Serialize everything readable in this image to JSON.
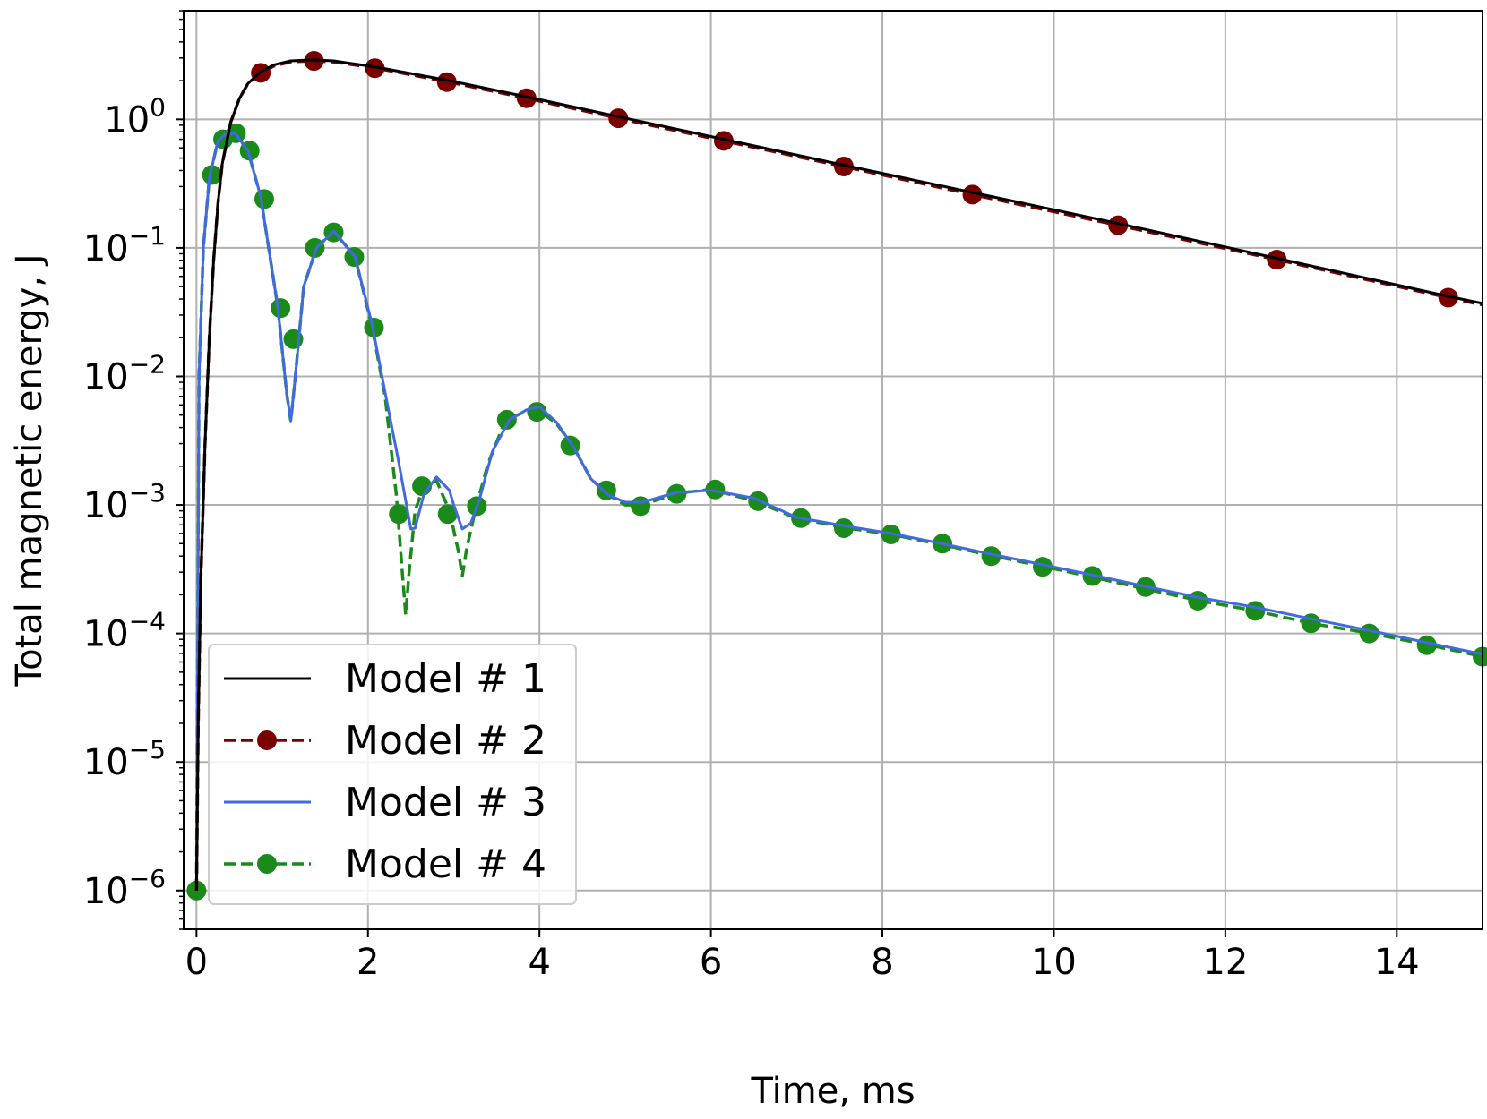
{
  "chart_data": {
    "type": "line",
    "xlabel": "Time, ms",
    "ylabel": "Total magnetic energy, J",
    "yscale": "log",
    "xlim": [
      -0.15,
      15
    ],
    "ylim": [
      5e-07,
      7
    ],
    "grid": true,
    "legend_position": "lower-left",
    "x_ticks": [
      0,
      2,
      4,
      6,
      8,
      10,
      12,
      14
    ],
    "x_tick_labels": [
      "0",
      "2",
      "4",
      "6",
      "8",
      "10",
      "12",
      "14"
    ],
    "y_ticks": [
      1e-06,
      1e-05,
      0.0001,
      0.001,
      0.01,
      0.1,
      1
    ],
    "y_tick_labels": [
      {
        "base": "10",
        "exp": "−6"
      },
      {
        "base": "10",
        "exp": "−5"
      },
      {
        "base": "10",
        "exp": "−4"
      },
      {
        "base": "10",
        "exp": "−3"
      },
      {
        "base": "10",
        "exp": "−2"
      },
      {
        "base": "10",
        "exp": "−1"
      },
      {
        "base": "10",
        "exp": "0"
      }
    ],
    "series": [
      {
        "name": "Model # 1",
        "color": "#000000",
        "line_style": "solid",
        "marker": "none",
        "x": [
          0,
          0.02,
          0.05,
          0.1,
          0.15,
          0.2,
          0.25,
          0.3,
          0.4,
          0.5,
          0.6,
          0.75,
          0.9,
          1.1,
          1.35,
          1.6,
          2.1,
          2.95,
          3.85,
          4.92,
          6.15,
          7.55,
          9.05,
          10.75,
          12.6,
          14.6,
          15
        ],
        "y": [
          1e-06,
          2e-05,
          0.00025,
          0.003,
          0.02,
          0.08,
          0.22,
          0.45,
          0.95,
          1.45,
          1.9,
          2.35,
          2.65,
          2.85,
          2.9,
          2.85,
          2.55,
          2.0,
          1.5,
          1.05,
          0.7,
          0.44,
          0.27,
          0.155,
          0.083,
          0.042,
          0.037
        ]
      },
      {
        "name": "Model # 2",
        "color": "#7a0000",
        "line_style": "dashed",
        "marker": "circle",
        "x": [
          0,
          0.02,
          0.05,
          0.1,
          0.15,
          0.2,
          0.25,
          0.3,
          0.4,
          0.5,
          0.6,
          0.75,
          0.9,
          1.1,
          1.35,
          1.6,
          2.1,
          2.95,
          3.85,
          4.92,
          6.15,
          7.55,
          9.05,
          10.75,
          12.6,
          14.6,
          15
        ],
        "y": [
          1e-06,
          2e-05,
          0.00025,
          0.003,
          0.02,
          0.08,
          0.22,
          0.45,
          0.95,
          1.45,
          1.9,
          2.3,
          2.6,
          2.8,
          2.85,
          2.8,
          2.5,
          1.95,
          1.46,
          1.02,
          0.68,
          0.43,
          0.26,
          0.15,
          0.081,
          0.041,
          0.036
        ],
        "marker_x": [
          0.75,
          1.37,
          2.08,
          2.92,
          3.85,
          4.92,
          6.15,
          7.55,
          9.05,
          10.75,
          12.6,
          14.6
        ],
        "marker_y": [
          2.3,
          2.85,
          2.5,
          1.95,
          1.46,
          1.02,
          0.68,
          0.43,
          0.26,
          0.15,
          0.081,
          0.041
        ]
      },
      {
        "name": "Model # 3",
        "color": "#4169e1",
        "line_style": "solid",
        "marker": "none",
        "x": [
          0,
          0.03,
          0.08,
          0.15,
          0.25,
          0.33,
          0.45,
          0.6,
          0.75,
          0.95,
          1.05,
          1.1,
          1.15,
          1.25,
          1.4,
          1.6,
          1.85,
          2.05,
          2.2,
          2.35,
          2.45,
          2.5,
          2.55,
          2.65,
          2.8,
          2.95,
          3.0,
          3.1,
          3.2,
          3.3,
          3.45,
          3.65,
          3.85,
          4.0,
          4.2,
          4.4,
          4.6,
          4.8,
          5.0,
          5.2,
          5.6,
          6.0,
          6.5,
          7.0,
          7.6,
          8.1,
          8.7,
          9.3,
          9.9,
          10.5,
          11.1,
          11.7,
          12.35,
          13.0,
          13.7,
          14.35,
          15.0
        ],
        "y": [
          1e-06,
          0.01,
          0.1,
          0.35,
          0.68,
          0.76,
          0.78,
          0.57,
          0.25,
          0.034,
          0.0075,
          0.0045,
          0.0095,
          0.05,
          0.1,
          0.135,
          0.085,
          0.025,
          0.0075,
          0.0023,
          0.001,
          0.00065,
          0.00066,
          0.0012,
          0.00165,
          0.0013,
          0.001,
          0.00065,
          0.00072,
          0.0011,
          0.0026,
          0.0046,
          0.0055,
          0.0058,
          0.0044,
          0.0028,
          0.0016,
          0.0012,
          0.00105,
          0.00105,
          0.00125,
          0.0013,
          0.00113,
          0.0008,
          0.00068,
          0.0006,
          0.0005,
          0.00041,
          0.00034,
          0.00028,
          0.00023,
          0.00019,
          0.00016,
          0.00013,
          0.000105,
          8.5e-05,
          6.9e-05
        ]
      },
      {
        "name": "Model # 4",
        "color": "#1a8a1a",
        "line_style": "dashed",
        "marker": "circle",
        "x": [
          0,
          0.03,
          0.08,
          0.15,
          0.25,
          0.33,
          0.45,
          0.6,
          0.75,
          0.95,
          1.05,
          1.1,
          1.15,
          1.25,
          1.4,
          1.6,
          1.85,
          2.05,
          2.2,
          2.33,
          2.4,
          2.44,
          2.48,
          2.55,
          2.65,
          2.8,
          2.95,
          3.05,
          3.1,
          3.15,
          3.25,
          3.4,
          3.6,
          3.85,
          3.98,
          4.2,
          4.4,
          4.6,
          4.8,
          5.0,
          5.2,
          5.6,
          6.0,
          6.5,
          7.0,
          7.6,
          8.1,
          8.7,
          9.3,
          9.9,
          10.5,
          11.1,
          11.7,
          12.35,
          13.0,
          13.7,
          14.35,
          15.0
        ],
        "y": [
          1e-06,
          0.01,
          0.1,
          0.35,
          0.68,
          0.76,
          0.78,
          0.57,
          0.25,
          0.034,
          0.0075,
          0.0045,
          0.0095,
          0.05,
          0.1,
          0.135,
          0.085,
          0.024,
          0.007,
          0.0012,
          0.0003,
          0.00014,
          0.0003,
          0.0009,
          0.0014,
          0.00155,
          0.0009,
          0.00045,
          0.00028,
          0.00045,
          0.0009,
          0.0021,
          0.0045,
          0.0054,
          0.0055,
          0.0043,
          0.0028,
          0.0016,
          0.0012,
          0.001,
          0.001,
          0.00123,
          0.00132,
          0.00108,
          0.00079,
          0.00066,
          0.00059,
          0.00049,
          0.0004,
          0.00033,
          0.00027,
          0.00022,
          0.00018,
          0.00015,
          0.00012,
          0.0001,
          8.2e-05,
          6.6e-05
        ],
        "marker_x": [
          0.0,
          0.18,
          0.31,
          0.46,
          0.62,
          0.79,
          0.98,
          1.13,
          1.38,
          1.6,
          1.84,
          2.07,
          2.36,
          2.63,
          2.93,
          3.27,
          3.62,
          3.97,
          4.36,
          4.78,
          5.18,
          5.6,
          6.05,
          6.55,
          7.05,
          7.55,
          8.1,
          8.7,
          9.27,
          9.87,
          10.45,
          11.07,
          11.68,
          12.35,
          13.0,
          13.68,
          14.35,
          15.0
        ],
        "marker_y": [
          1e-06,
          0.37,
          0.7,
          0.78,
          0.57,
          0.24,
          0.034,
          0.0195,
          0.1,
          0.132,
          0.085,
          0.024,
          0.00085,
          0.0014,
          0.00085,
          0.00098,
          0.0046,
          0.0053,
          0.0029,
          0.0013,
          0.00098,
          0.00122,
          0.00132,
          0.00107,
          0.00079,
          0.00066,
          0.00059,
          0.0005,
          0.0004,
          0.00033,
          0.00028,
          0.00023,
          0.00018,
          0.00015,
          0.00012,
          0.0001,
          8.1e-05,
          6.6e-05
        ]
      }
    ]
  }
}
